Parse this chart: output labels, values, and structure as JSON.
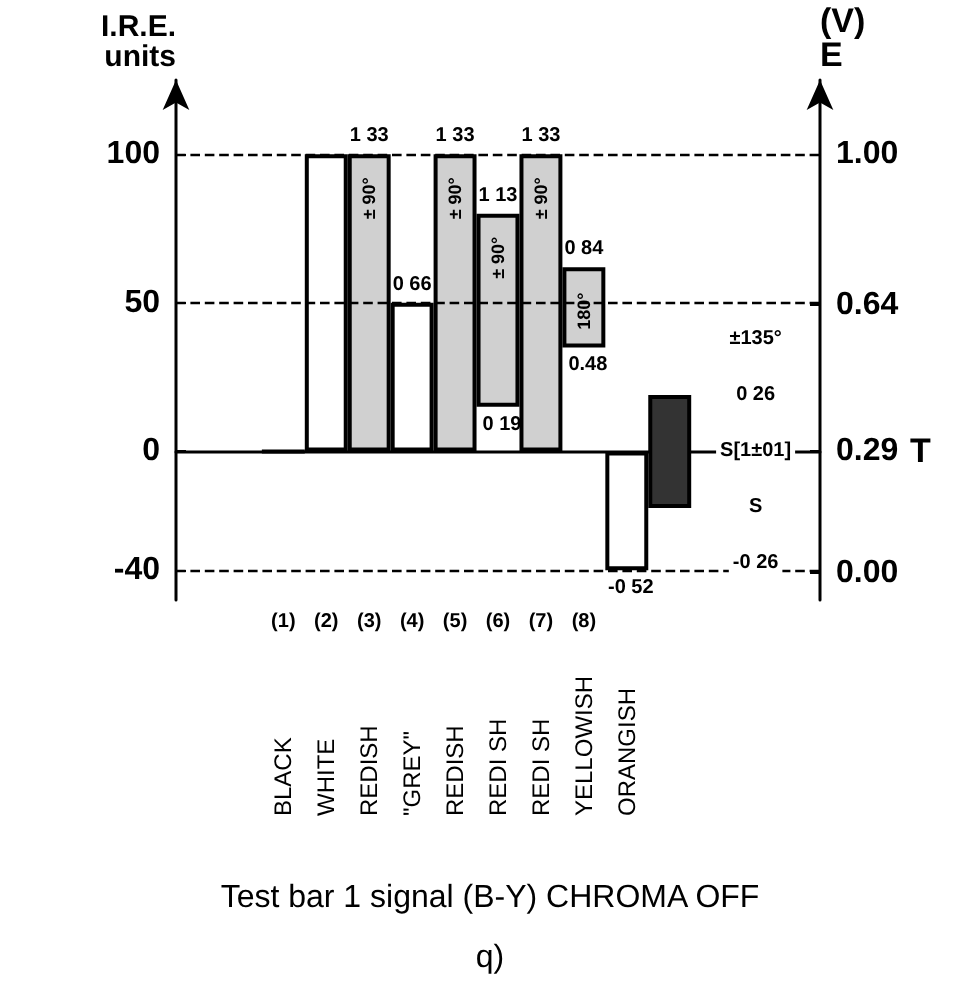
{
  "chart_data": {
    "type": "bar",
    "title": "Test bar 1 signal (B-Y) CHROMA OFF",
    "subtitle": "q)",
    "xlabel": "T",
    "ylabel": "I.R.E.\nunits",
    "y2label": "(V)\nE",
    "categories": [
      null,
      null,
      "(1)",
      "(2)",
      "(3)",
      "(4)",
      "(5)",
      "(6)",
      "(7)",
      "(8)",
      null,
      null,
      null,
      null,
      null
    ],
    "values": [
      null,
      null,
      0,
      100,
      100,
      50,
      100,
      65,
      100,
      27,
      40,
      38,
      null,
      null,
      null
    ],
    "base": [
      null,
      null,
      0,
      0,
      0,
      0,
      0,
      15,
      0,
      35,
      -40,
      -19,
      null,
      null,
      null
    ],
    "colors": [
      "#ffffff",
      "#ffffff",
      "#000000",
      "#ffffff",
      "#d0d0d0",
      "#ffffff",
      "#d0d0d0",
      "#d0d0d0",
      "#d0d0d0",
      "#d0d0d0",
      "#ffffff",
      "#333333",
      "#ffffff",
      "#ffffff",
      "#ffffff"
    ],
    "ylim": [
      -50,
      125
    ],
    "yticks": [
      -40,
      0,
      50,
      100
    ],
    "y2lim": [
      -0.065,
      1.178
    ],
    "y2ticks": [
      {
        "value": 0,
        "label": "0.00"
      },
      0.29,
      0.64,
      {
        "value": 1,
        "label": "1.00"
      }
    ],
    "ref_lines": [
      {
        "axis": "y",
        "value": 100,
        "line_style": "dashed",
        "color": "#000000"
      },
      {
        "axis": "y",
        "value": 50,
        "line_style": "dashed",
        "color": "#000000"
      },
      {
        "axis": "y",
        "value": -40,
        "line_style": "dashed",
        "color": "#000000"
      }
    ],
    "annotations": [
      "BLACK",
      "WHITE",
      "REDISH",
      "\"GREY\"",
      "REDISH",
      "REDI SH",
      "REDI SH",
      "YELLOWISH",
      "ORANGISH",
      "±135°",
      "0 26",
      "S[1±01]",
      "S",
      "-0 26",
      {
        "text": "1 33",
        "x": "(3)",
        "y": 100
      },
      {
        "text": "± 90°",
        "x": "(3)",
        "y": 100
      },
      {
        "text": "0 66",
        "x": "(4)",
        "y": 50
      },
      {
        "text": "1 33",
        "x": "(5)",
        "y": 100
      },
      {
        "text": "± 90°",
        "x": "(5)",
        "y": 100
      },
      {
        "text": "1 13",
        "x": "(6)",
        "y": 80
      },
      {
        "text": "± 90°",
        "x": "(6)",
        "y": 80
      },
      {
        "text": "1 33",
        "x": "(7)",
        "y": 100
      },
      {
        "text": "± 90°",
        "x": "(7)",
        "y": 100
      },
      {
        "text": "0 84",
        "x": "(8)",
        "y": 62
      },
      {
        "text": "180°",
        "x": "(8)",
        "y": 62
      },
      {
        "text": "0 19",
        "x": "(6)",
        "y": 15
      },
      {
        "text": "0.48",
        "x": "(8)",
        "y": 35
      },
      {
        "text": "-0 52",
        "y": -40
      }
    ],
    "grid": false
  }
}
